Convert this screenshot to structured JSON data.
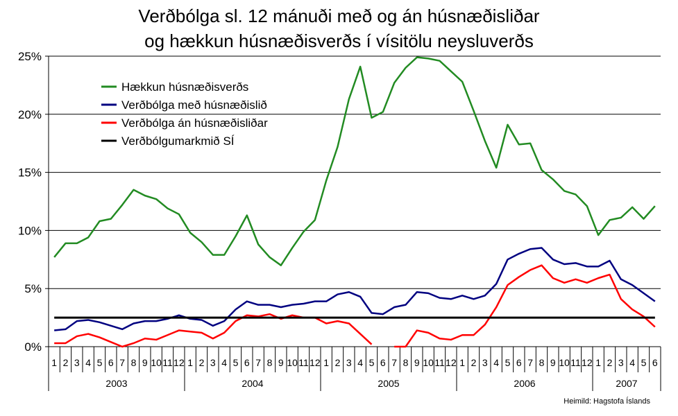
{
  "chart_data": {
    "type": "line",
    "title_lines": [
      "Verðbólga sl. 12 mánuði með og án húsnæðisliðar",
      "og hækkun húsnæðisverðs í vísitölu neysluverðs"
    ],
    "xlabel": "",
    "ylabel": "",
    "ylim": [
      0,
      25
    ],
    "y_ticks": [
      "0%",
      "5%",
      "10%",
      "15%",
      "20%",
      "25%"
    ],
    "y_tick_values": [
      0,
      5,
      10,
      15,
      20,
      25
    ],
    "grid": "horizontal",
    "legend_placement": "top-left",
    "month_labels": [
      "1",
      "2",
      "3",
      "4",
      "5",
      "6",
      "7",
      "8",
      "9",
      "10",
      "11",
      "12",
      "1",
      "2",
      "3",
      "4",
      "5",
      "6",
      "7",
      "8",
      "9",
      "10",
      "11",
      "12",
      "1",
      "2",
      "3",
      "4",
      "5",
      "6",
      "7",
      "8",
      "9",
      "10",
      "11",
      "12",
      "1",
      "2",
      "3",
      "4",
      "5",
      "6",
      "7",
      "8",
      "9",
      "10",
      "11",
      "12",
      "1",
      "2",
      "3",
      "4",
      "5",
      "6"
    ],
    "years": [
      {
        "label": "2003",
        "months": 12
      },
      {
        "label": "2004",
        "months": 12
      },
      {
        "label": "2005",
        "months": 12
      },
      {
        "label": "2006",
        "months": 12
      },
      {
        "label": "2007",
        "months": 6
      }
    ],
    "series": [
      {
        "name": "Hækkun húsnæðisverðs",
        "color": "#228B22",
        "values": [
          7.7,
          8.9,
          8.9,
          9.4,
          10.8,
          11.0,
          12.2,
          13.5,
          13.0,
          12.7,
          11.9,
          11.4,
          9.8,
          9.0,
          7.9,
          7.9,
          9.5,
          11.3,
          8.8,
          7.7,
          7.0,
          8.5,
          9.9,
          10.9,
          14.3,
          17.2,
          21.3,
          24.1,
          19.7,
          20.2,
          22.7,
          24.0,
          24.9,
          24.8,
          24.6,
          23.7,
          22.8,
          20.3,
          17.7,
          15.4,
          19.1,
          17.4,
          17.5,
          15.2,
          14.4,
          13.4,
          13.1,
          12.1,
          9.6,
          10.9,
          11.1,
          12.0,
          11.0,
          12.1
        ]
      },
      {
        "name": "Verðbólga með húsnæðislið",
        "color": "#000080",
        "values": [
          1.4,
          1.5,
          2.2,
          2.3,
          2.1,
          1.8,
          1.5,
          2.0,
          2.2,
          2.2,
          2.4,
          2.7,
          2.4,
          2.3,
          1.8,
          2.2,
          3.2,
          3.9,
          3.6,
          3.6,
          3.4,
          3.6,
          3.7,
          3.9,
          3.9,
          4.5,
          4.7,
          4.3,
          2.9,
          2.8,
          3.4,
          3.6,
          4.7,
          4.6,
          4.2,
          4.1,
          4.4,
          4.1,
          4.4,
          5.4,
          7.5,
          8.0,
          8.4,
          8.5,
          7.5,
          7.1,
          7.2,
          6.9,
          6.9,
          7.4,
          5.8,
          5.3,
          4.6,
          3.9
        ]
      },
      {
        "name": "Verðbólga án húsnæðisliðar",
        "color": "#FF0000",
        "values": [
          0.3,
          0.3,
          0.9,
          1.1,
          0.8,
          0.4,
          0.0,
          0.3,
          0.7,
          0.6,
          1.0,
          1.4,
          1.3,
          1.2,
          0.7,
          1.2,
          2.2,
          2.7,
          2.6,
          2.8,
          2.4,
          2.7,
          2.5,
          2.5,
          2.0,
          2.2,
          2.0,
          1.1,
          0.2,
          null,
          0.0,
          0.0,
          1.4,
          1.2,
          0.7,
          0.6,
          1.0,
          1.0,
          1.9,
          3.4,
          5.3,
          6.0,
          6.6,
          7.0,
          5.9,
          5.5,
          5.8,
          5.5,
          5.9,
          6.2,
          4.1,
          3.2,
          2.6,
          1.7
        ]
      },
      {
        "name": "Verðbólgumarkmið SÍ",
        "color": "#000000",
        "values": [
          2.5,
          2.5,
          2.5,
          2.5,
          2.5,
          2.5,
          2.5,
          2.5,
          2.5,
          2.5,
          2.5,
          2.5,
          2.5,
          2.5,
          2.5,
          2.5,
          2.5,
          2.5,
          2.5,
          2.5,
          2.5,
          2.5,
          2.5,
          2.5,
          2.5,
          2.5,
          2.5,
          2.5,
          2.5,
          2.5,
          2.5,
          2.5,
          2.5,
          2.5,
          2.5,
          2.5,
          2.5,
          2.5,
          2.5,
          2.5,
          2.5,
          2.5,
          2.5,
          2.5,
          2.5,
          2.5,
          2.5,
          2.5,
          2.5,
          2.5,
          2.5,
          2.5,
          2.5,
          2.5
        ]
      }
    ]
  },
  "source_note": "Heimild:  Hagstofa Íslands"
}
